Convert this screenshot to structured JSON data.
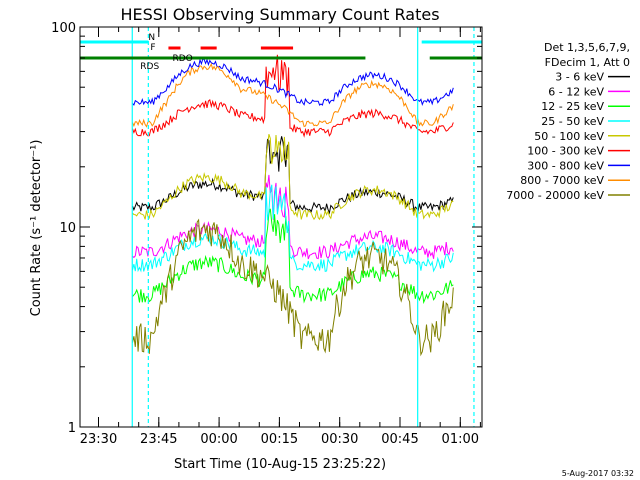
{
  "chart_data": {
    "type": "line",
    "title": "HESSI Observing Summary Count Rates",
    "ylabel": "Count Rate (s⁻¹ detector⁻¹)",
    "xlabel": "Start Time (10-Aug-15 23:25:22)",
    "yscale": "log",
    "ylim": [
      1,
      100
    ],
    "xlim_minutes": [
      0,
      100
    ],
    "x_tick_labels": [
      "23:30",
      "23:45",
      "00:00",
      "00:15",
      "00:30",
      "00:45",
      "01:00"
    ],
    "x_tick_minutes": [
      4.6,
      19.6,
      34.6,
      49.6,
      64.6,
      79.6,
      94.6
    ],
    "y_tick_labels": [
      "1",
      "10",
      "100"
    ],
    "y_tick_values": [
      1,
      10,
      100
    ],
    "legend_header": [
      "Det 1,3,5,6,7,9,",
      "FDecim 1, Att 0"
    ],
    "footer_date": "5-Aug-2017 03:32",
    "flag_labels": {
      "n": "N",
      "f": "F",
      "rds": "RDS",
      "rdo": "RDO"
    },
    "flags": {
      "night": [
        [
          0,
          17
        ],
        [
          85,
          100
        ]
      ],
      "flare": [
        [
          22,
          25
        ],
        [
          30,
          34
        ],
        [
          45,
          53
        ]
      ],
      "rds": [
        [
          0,
          71
        ],
        [
          87,
          100
        ]
      ]
    },
    "saa_lines": [
      [
        13,
        17
      ],
      [
        84,
        98
      ]
    ],
    "data_gaps": [
      [
        0,
        13
      ],
      [
        93,
        100
      ]
    ],
    "series": [
      {
        "name": "3 - 6 keV",
        "color": "#000000",
        "base": 12.5,
        "peak": 16,
        "noise": 0.06
      },
      {
        "name": "6 - 12 keV",
        "color": "#ff00ff",
        "base": 7.5,
        "peak": 9.5,
        "noise": 0.08
      },
      {
        "name": "12 - 25 keV",
        "color": "#00ff00",
        "base": 4.6,
        "peak": 6.4,
        "noise": 0.09
      },
      {
        "name": "25 - 50 keV",
        "color": "#00ffff",
        "base": 6.5,
        "peak": 8.5,
        "noise": 0.08
      },
      {
        "name": "50 - 100 keV",
        "color": "#c8c800",
        "base": 11.5,
        "peak": 17,
        "noise": 0.06
      },
      {
        "name": "100 - 300 keV",
        "color": "#ff0000",
        "base": 30,
        "peak": 40,
        "noise": 0.05
      },
      {
        "name": "300 - 800 keV",
        "color": "#0000ff",
        "base": 42,
        "peak": 64,
        "noise": 0.04
      },
      {
        "name": "800 - 7000 keV",
        "color": "#ff8c00",
        "base": 33,
        "peak": 60,
        "noise": 0.04
      },
      {
        "name": "7000 - 20000 keV",
        "color": "#808000",
        "base": 2.8,
        "peak": 9.0,
        "noise": 0.18
      }
    ]
  }
}
